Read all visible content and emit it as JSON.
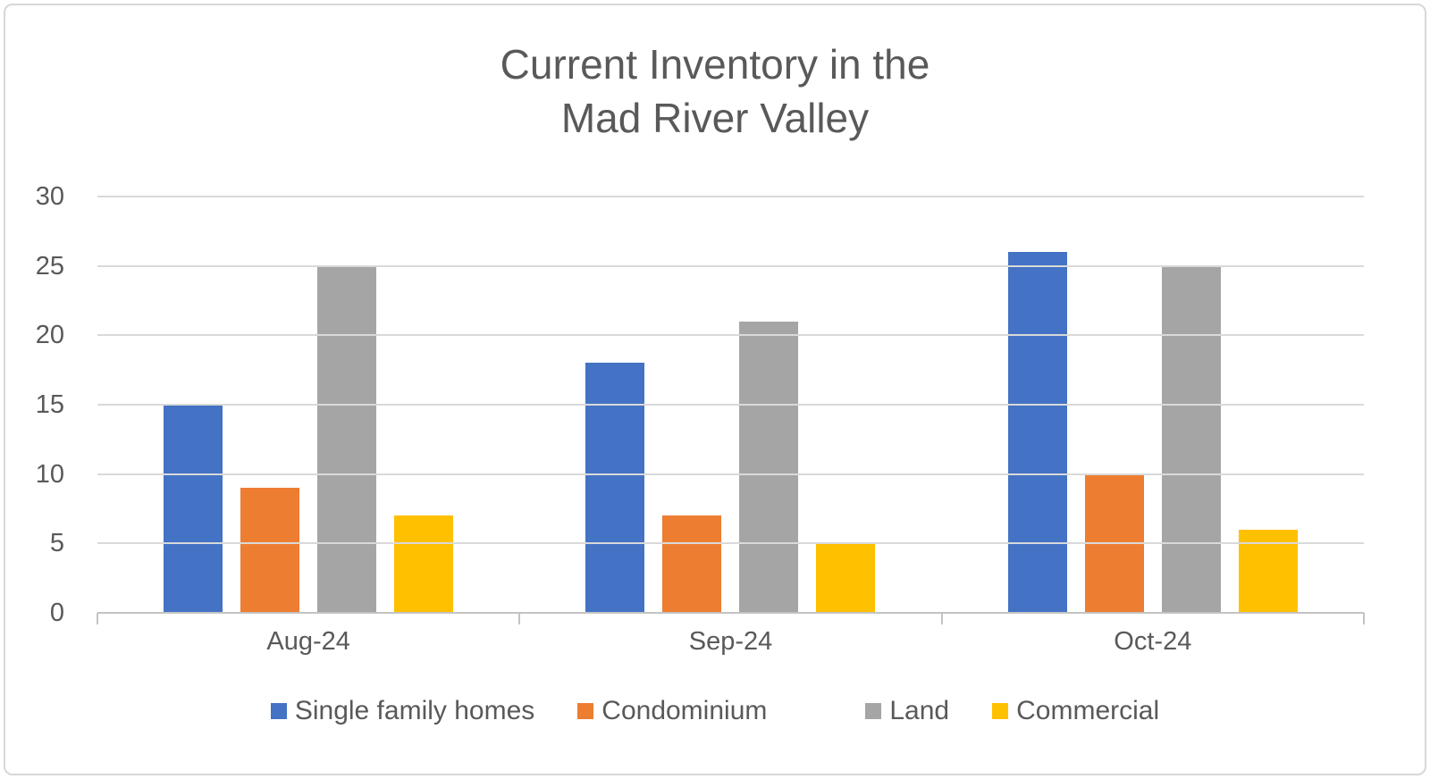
{
  "chart_data": {
    "type": "bar",
    "title": "Current Inventory in the Mad River Valley",
    "title_lines": [
      "Current Inventory in the",
      "Mad River Valley"
    ],
    "categories": [
      "Aug-24",
      "Sep-24",
      "Oct-24"
    ],
    "series": [
      {
        "name": "Single family homes",
        "color": "#4472C4",
        "values": [
          15,
          18,
          26
        ]
      },
      {
        "name": "Condominium",
        "color": "#ED7D31",
        "values": [
          9,
          7,
          10
        ]
      },
      {
        "name": "Land",
        "color": "#A5A5A5",
        "values": [
          25,
          21,
          25
        ]
      },
      {
        "name": "Commercial",
        "color": "#FFC000",
        "values": [
          7,
          5,
          6
        ]
      }
    ],
    "xlabel": "",
    "ylabel": "",
    "y_axis": {
      "min": 0,
      "max": 30,
      "step": 5,
      "ticks": [
        0,
        5,
        10,
        15,
        20,
        25,
        30
      ]
    },
    "grid": true,
    "legend_position": "bottom"
  },
  "colors": {
    "text": "#595959",
    "gridline": "#d9d9d9",
    "axis_line": "#c3c3c3",
    "frame_border": "#d7d7d7",
    "background": "#ffffff"
  }
}
